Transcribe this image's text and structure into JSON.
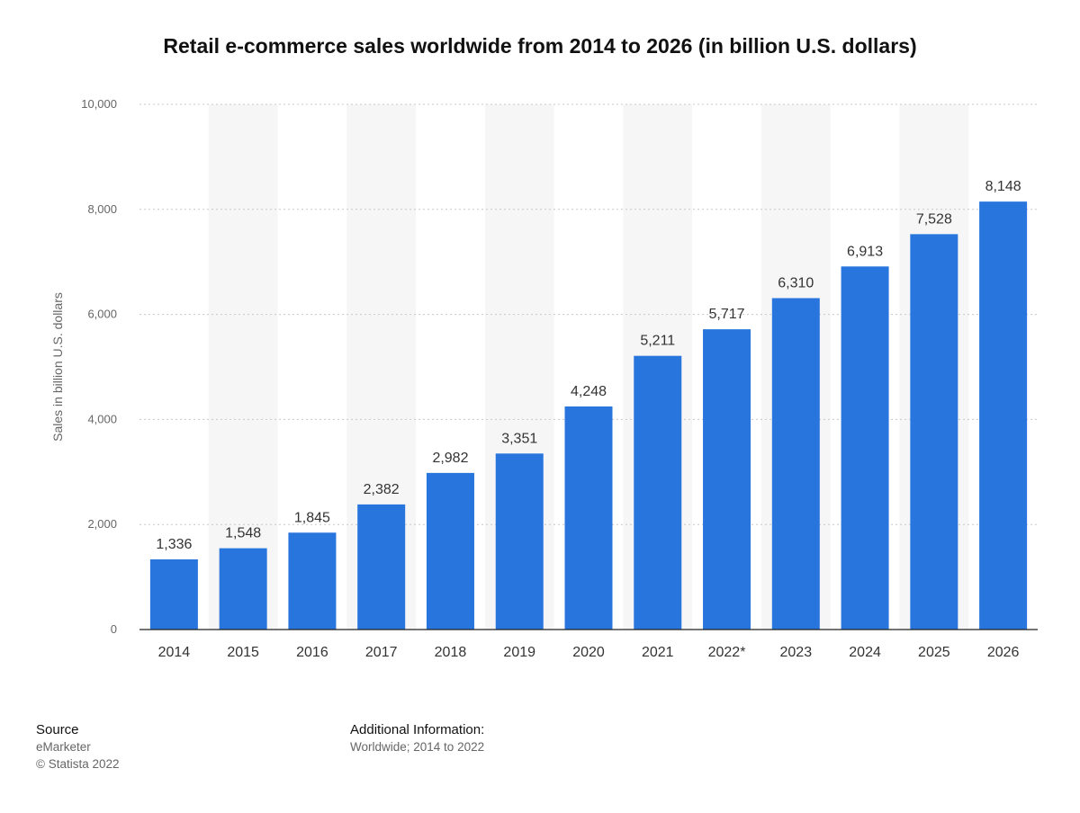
{
  "chart_data": {
    "type": "bar",
    "title": "Retail e-commerce sales worldwide from 2014 to 2026 (in billion U.S. dollars)",
    "xlabel": "",
    "ylabel": "Sales in billion U.S. dollars",
    "categories": [
      "2014",
      "2015",
      "2016",
      "2017",
      "2018",
      "2019",
      "2020",
      "2021",
      "2022*",
      "2023",
      "2024",
      "2025",
      "2026"
    ],
    "values": [
      1336,
      1548,
      1845,
      2382,
      2982,
      3351,
      4248,
      5211,
      5717,
      6310,
      6913,
      7528,
      8148
    ],
    "value_labels": [
      "1,336",
      "1,548",
      "1,845",
      "2,382",
      "2,982",
      "3,351",
      "4,248",
      "5,211",
      "5,717",
      "6,310",
      "6,913",
      "7,528",
      "8,148"
    ],
    "ylim": [
      0,
      10000
    ],
    "yticks": [
      0,
      2000,
      4000,
      6000,
      8000,
      10000
    ],
    "ytick_labels": [
      "0",
      "2,000",
      "4,000",
      "6,000",
      "8,000",
      "10,000"
    ],
    "grid": true,
    "bar_color": "#2876dd",
    "band_color": "#f6f6f6"
  },
  "footer": {
    "source_heading": "Source",
    "source_lines": [
      "eMarketer",
      "© Statista 2022"
    ],
    "additional_heading": "Additional Information:",
    "additional_text": "Worldwide; 2014 to 2022"
  }
}
